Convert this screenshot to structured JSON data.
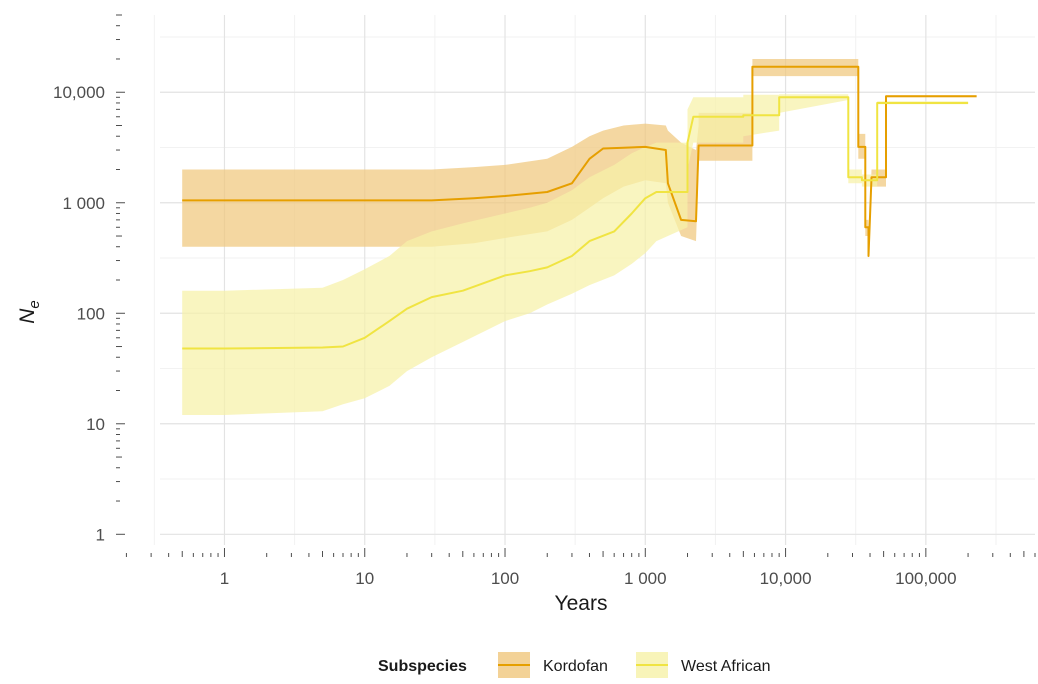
{
  "chart_data": {
    "type": "line",
    "xlabel": "Years",
    "ylabel": "N",
    "ylabel_subscript": "e",
    "x_scale": "log",
    "y_scale": "log",
    "xlim": [
      0.18,
      600000
    ],
    "ylim": [
      0.8,
      50000
    ],
    "grid": true,
    "legend_position": "bottom",
    "legend_title": "Subspecies",
    "x_ticks": [
      {
        "value": 1,
        "label": "1"
      },
      {
        "value": 10,
        "label": "10"
      },
      {
        "value": 100,
        "label": "100"
      },
      {
        "value": 1000,
        "label": "1 000"
      },
      {
        "value": 10000,
        "label": "10,000"
      },
      {
        "value": 100000,
        "label": "100,000"
      }
    ],
    "y_ticks": [
      {
        "value": 1,
        "label": "1"
      },
      {
        "value": 10,
        "label": "10"
      },
      {
        "value": 100,
        "label": "100"
      },
      {
        "value": 1000,
        "label": "1 000"
      },
      {
        "value": 10000,
        "label": "10,000"
      }
    ],
    "series": [
      {
        "name": "Kordofan",
        "color": "#e69f00",
        "ribbon_color": "#f0c77d",
        "x": [
          0.5,
          1,
          10,
          30,
          60,
          100,
          200,
          300,
          400,
          500,
          700,
          1000,
          1400,
          1450,
          1800,
          2300,
          2400,
          2400,
          5800,
          5800,
          33000,
          33000,
          37000,
          37000,
          39000,
          39000,
          41000,
          41000,
          52000,
          52000,
          230000
        ],
        "y": [
          1050,
          1050,
          1050,
          1050,
          1100,
          1150,
          1250,
          1500,
          2500,
          3100,
          3150,
          3200,
          3000,
          1500,
          700,
          680,
          3300,
          3300,
          3300,
          17000,
          17000,
          3200,
          3200,
          600,
          600,
          330,
          1700,
          1700,
          1700,
          9200,
          9200
        ],
        "lower": [
          400,
          400,
          400,
          400,
          430,
          480,
          550,
          700,
          900,
          1100,
          1400,
          1600,
          1500,
          1000,
          500,
          450,
          2000,
          2400,
          2400,
          14000,
          14000,
          2500,
          2500,
          500,
          500,
          300,
          1400,
          1400,
          1400,
          9000,
          9000
        ],
        "upper": [
          2000,
          2000,
          2000,
          2000,
          2100,
          2200,
          2500,
          3200,
          4000,
          4500,
          5000,
          5200,
          5000,
          4500,
          3500,
          3000,
          5000,
          6500,
          6500,
          20000,
          20000,
          4200,
          4200,
          700,
          700,
          360,
          2000,
          2000,
          2000,
          9400,
          9400
        ]
      },
      {
        "name": "West African",
        "color": "#f0e442",
        "ribbon_color": "#f6f1a8",
        "x": [
          0.5,
          1,
          5,
          7,
          10,
          15,
          20,
          30,
          50,
          100,
          150,
          200,
          300,
          400,
          600,
          800,
          1000,
          1200,
          2000,
          2000,
          2200,
          5000,
          5000,
          9000,
          9000,
          28000,
          28000,
          35000,
          35000,
          45000,
          45000,
          200000
        ],
        "y": [
          48,
          48,
          49,
          50,
          60,
          85,
          110,
          140,
          160,
          220,
          240,
          260,
          330,
          450,
          550,
          800,
          1100,
          1250,
          1250,
          3500,
          6000,
          6000,
          6200,
          6200,
          9000,
          9000,
          1700,
          1700,
          1600,
          1600,
          8000,
          8000
        ],
        "lower": [
          12,
          12,
          13,
          15,
          17,
          22,
          30,
          40,
          55,
          85,
          100,
          120,
          150,
          180,
          220,
          280,
          350,
          450,
          600,
          2000,
          3500,
          3500,
          4000,
          4500,
          6500,
          8500,
          1500,
          1500,
          1400,
          1400,
          7800,
          7800
        ],
        "upper": [
          160,
          160,
          170,
          200,
          250,
          330,
          450,
          550,
          650,
          800,
          900,
          1000,
          1300,
          1700,
          2200,
          2800,
          3200,
          3500,
          3500,
          7000,
          9000,
          9000,
          9500,
          9500,
          9600,
          9600,
          2000,
          2000,
          1800,
          1800,
          8300,
          8300
        ]
      }
    ]
  }
}
